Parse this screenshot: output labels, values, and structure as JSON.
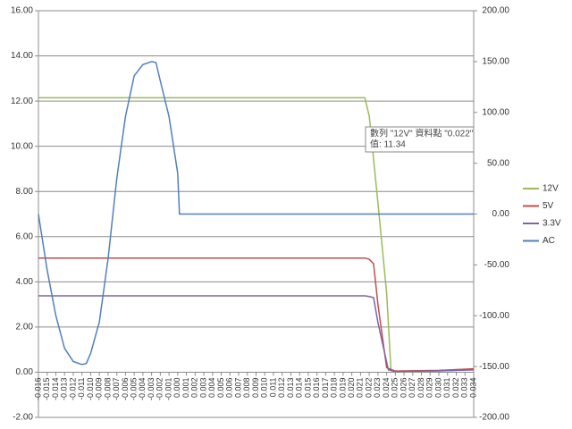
{
  "chart_data": {
    "type": "line",
    "xlim": [
      -0.016,
      0.034
    ],
    "xticks": [
      -0.016,
      -0.015,
      -0.014,
      -0.013,
      -0.012,
      -0.011,
      {
        "value": -0.01,
        "label": "-0.010"
      },
      -0.009,
      -0.008,
      -0.007,
      -0.006,
      -0.005,
      -0.004,
      -0.003,
      -0.002,
      -0.001,
      {
        "value": 0,
        "label": "0.000"
      },
      0.001,
      0.002,
      0.003,
      0.004,
      0.005,
      0.006,
      0.007,
      0.008,
      0.009,
      {
        "value": 0.01,
        "label": "0.010"
      },
      0.011,
      0.012,
      0.013,
      0.014,
      0.015,
      0.016,
      0.017,
      0.018,
      0.019,
      {
        "value": 0.02,
        "label": "0.020"
      },
      0.021,
      0.022,
      0.023,
      0.024,
      0.025,
      0.026,
      0.027,
      0.028,
      0.029,
      {
        "value": 0.03,
        "label": "0.030"
      },
      0.031,
      0.032,
      0.033,
      0.034
    ],
    "ylim": [
      -2,
      16
    ],
    "yticks": [
      {
        "value": -2,
        "label": "-2.00"
      },
      {
        "value": 0,
        "label": "0.00"
      },
      {
        "value": 2,
        "label": "2.00"
      },
      {
        "value": 4,
        "label": "4.00"
      },
      {
        "value": 6,
        "label": "6.00"
      },
      {
        "value": 8,
        "label": "8.00"
      },
      {
        "value": 10,
        "label": "10.00"
      },
      {
        "value": 12,
        "label": "12.00"
      },
      {
        "value": 14,
        "label": "14.00"
      },
      {
        "value": 16,
        "label": "16.00"
      }
    ],
    "y2lim": [
      -200,
      200
    ],
    "y2ticks": [
      {
        "value": -200,
        "label": "-200.00"
      },
      {
        "value": -150,
        "label": "-150.00"
      },
      {
        "value": -100,
        "label": "-100.00"
      },
      {
        "value": -50,
        "label": "-50.00"
      },
      {
        "value": 0,
        "label": "0.00"
      },
      {
        "value": 50,
        "label": "50.00"
      },
      {
        "value": 100,
        "label": "100.00"
      },
      {
        "value": 150,
        "label": "150.00"
      },
      {
        "value": 200,
        "label": "200.00"
      }
    ],
    "grid": true,
    "legend": "right",
    "series": [
      {
        "name": "12V",
        "color": "#9bbb59",
        "x": [
          -0.016,
          0.0215,
          0.022,
          0.023,
          0.024,
          0.0245,
          0.025,
          0.03,
          0.034
        ],
        "values": [
          12.15,
          12.15,
          11.34,
          7.5,
          3.5,
          0.1,
          0.02,
          0.05,
          0.12
        ]
      },
      {
        "name": "5V",
        "color": "#c0504d",
        "x": [
          -0.016,
          0.0215,
          0.022,
          0.0225,
          0.023,
          0.024,
          0.025,
          0.03,
          0.034
        ],
        "values": [
          5.05,
          5.05,
          5.0,
          4.8,
          3.0,
          0.2,
          0.05,
          0.08,
          0.15
        ]
      },
      {
        "name": "3.3V",
        "color": "#8064a2",
        "x": [
          -0.016,
          0.0215,
          0.022,
          0.0225,
          0.023,
          0.0242,
          0.025,
          0.03,
          0.034
        ],
        "values": [
          3.38,
          3.38,
          3.35,
          3.3,
          2.2,
          0.1,
          0.03,
          0.06,
          0.1
        ]
      },
      {
        "name": "AC",
        "color": "#4f81bd",
        "axis": "y2",
        "x": [
          -0.016,
          -0.015,
          -0.014,
          -0.013,
          -0.012,
          -0.011,
          -0.0105,
          -0.01,
          -0.009,
          -0.008,
          -0.007,
          -0.006,
          -0.005,
          -0.004,
          -0.003,
          -0.0025,
          -0.002,
          -0.001,
          0,
          0.0002,
          0.034
        ],
        "values": [
          0,
          -55,
          -100,
          -132,
          -145,
          -148,
          -147,
          -137,
          -106,
          -44,
          35,
          96,
          136,
          147,
          150,
          149,
          131,
          96,
          40,
          0,
          0
        ]
      }
    ],
    "tooltip": {
      "line1": "數列 \"12V\" 資料點 \"0.022\"",
      "line2": "值: 11.34"
    }
  }
}
